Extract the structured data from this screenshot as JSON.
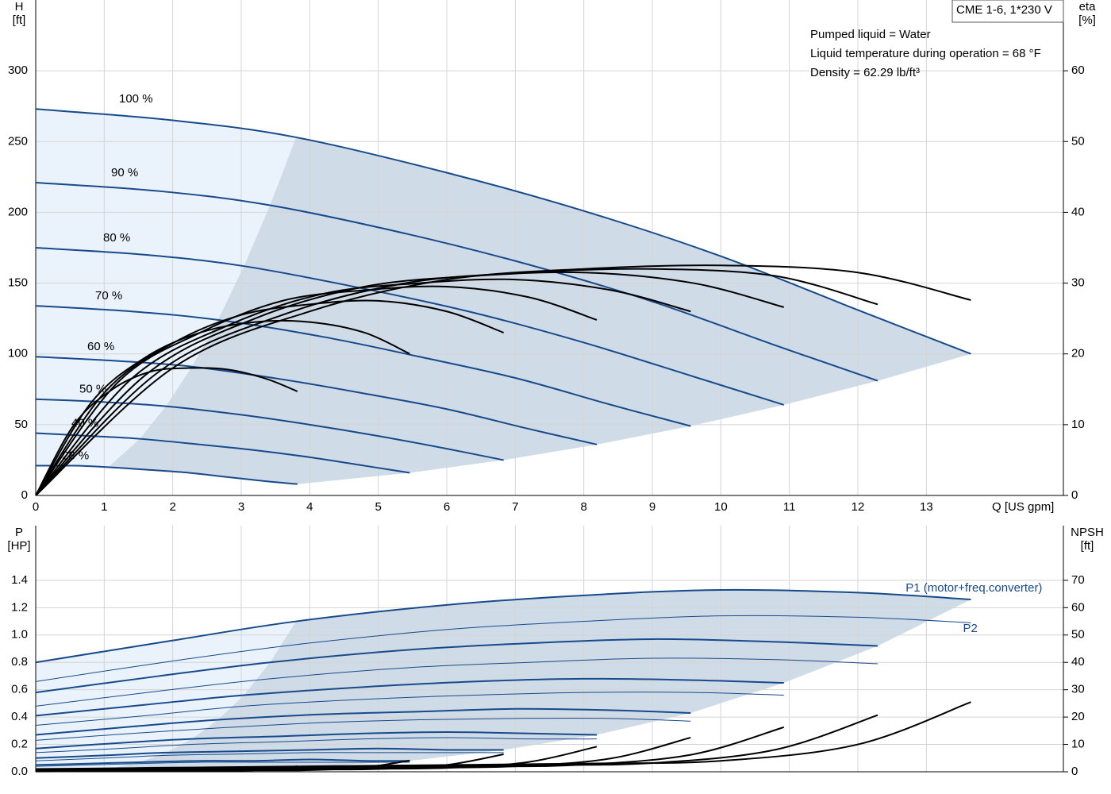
{
  "chart_data": [
    {
      "type": "line",
      "ylabel": [
        "H",
        "[ft]"
      ],
      "y2label": [
        "eta",
        "[%]"
      ],
      "xlabel": "Q [US gpm]",
      "annotations": [
        "CME 1-6, 1*230 V",
        "Pumped liquid = Water",
        "Liquid temperature during operation = 68 °F",
        "Density = 62.29 lb/ft³"
      ],
      "xlim": [
        0,
        15
      ],
      "xticks": [
        0,
        1,
        2,
        3,
        4,
        5,
        6,
        7,
        8,
        9,
        10,
        11,
        12,
        13
      ],
      "ylim": [
        0,
        350
      ],
      "yticks": [
        0,
        50,
        100,
        150,
        200,
        250,
        300
      ],
      "y2lim": [
        0,
        70
      ],
      "y2ticks": [
        0,
        10,
        20,
        30,
        40,
        50,
        60
      ],
      "grid": true,
      "series": [
        {
          "name": "100 %",
          "color": "#174a8b",
          "width": 2,
          "x": [
            0,
            2,
            3.8,
            6,
            8,
            10,
            12,
            13.65
          ],
          "values": [
            273,
            265,
            253,
            228,
            201,
            169,
            131,
            100
          ]
        },
        {
          "name": "90 %",
          "color": "#174a8b",
          "width": 2,
          "x": [
            0,
            1.8,
            3.42,
            5.4,
            7.2,
            9,
            10.8,
            12.29
          ],
          "values": [
            221,
            215,
            205,
            185,
            163,
            137,
            106,
            81
          ]
        },
        {
          "name": "80 %",
          "color": "#174a8b",
          "width": 2,
          "x": [
            0,
            1.6,
            3.04,
            4.8,
            6.4,
            8,
            9.6,
            10.92
          ],
          "values": [
            175,
            170,
            162,
            146,
            129,
            108,
            84,
            64
          ]
        },
        {
          "name": "70 %",
          "color": "#174a8b",
          "width": 2,
          "x": [
            0,
            1.4,
            2.66,
            4.2,
            5.6,
            7,
            8.4,
            9.56
          ],
          "values": [
            134,
            130,
            124,
            112,
            98,
            83,
            64,
            49
          ]
        },
        {
          "name": "60 %",
          "color": "#174a8b",
          "width": 2,
          "x": [
            0,
            1.2,
            2.28,
            3.6,
            4.8,
            6,
            7.2,
            8.19
          ],
          "values": [
            98,
            95,
            91,
            82,
            72,
            61,
            47,
            36
          ]
        },
        {
          "name": "50 %",
          "color": "#174a8b",
          "width": 2,
          "x": [
            0,
            1,
            1.9,
            3,
            4,
            5,
            6,
            6.83
          ],
          "values": [
            68,
            66,
            63,
            57,
            50,
            42,
            33,
            25
          ]
        },
        {
          "name": "40 %",
          "color": "#174a8b",
          "width": 2,
          "x": [
            0,
            0.8,
            1.52,
            2.4,
            3.2,
            4,
            4.8,
            5.46
          ],
          "values": [
            44,
            42,
            40,
            36,
            32,
            27,
            21,
            16
          ]
        },
        {
          "name": "28 %",
          "color": "#174a8b",
          "width": 2,
          "x": [
            0,
            0.56,
            1.06,
            1.68,
            2.24,
            2.8,
            3.36,
            3.82
          ],
          "values": [
            21,
            21,
            20,
            18,
            16,
            13,
            10,
            8
          ]
        },
        {
          "color": "#000000",
          "width": 2,
          "axis": "y2",
          "x": [
            0,
            2,
            4,
            6,
            8,
            10,
            12,
            13.65
          ],
          "values": [
            0,
            18,
            26,
            30.5,
            32,
            32.5,
            31.5,
            27.6
          ]
        },
        {
          "color": "#000000",
          "width": 2,
          "axis": "y2",
          "x": [
            0,
            1.8,
            3.6,
            5.4,
            7.2,
            9,
            10.8,
            12.29
          ],
          "values": [
            0,
            17.5,
            25.5,
            30,
            31.5,
            32,
            31,
            27
          ]
        },
        {
          "color": "#000000",
          "width": 2,
          "axis": "y2",
          "x": [
            0,
            1.6,
            3.2,
            4.8,
            6.4,
            8,
            9.6,
            10.92
          ],
          "values": [
            0,
            17,
            25,
            29.5,
            31,
            31.5,
            30,
            26.6
          ]
        },
        {
          "color": "#000000",
          "width": 2,
          "axis": "y2",
          "x": [
            0,
            1.4,
            2.8,
            4.2,
            5.6,
            7,
            8.4,
            9.56
          ],
          "values": [
            0,
            16.5,
            24,
            28.5,
            30,
            30.5,
            29,
            26
          ]
        },
        {
          "color": "#000000",
          "width": 2,
          "axis": "y2",
          "x": [
            0,
            1.2,
            2.4,
            3.6,
            4.8,
            6,
            7.2,
            8.19
          ],
          "values": [
            0,
            16,
            23,
            27.5,
            29,
            29.5,
            28,
            24.8
          ]
        },
        {
          "color": "#000000",
          "width": 2,
          "axis": "y2",
          "x": [
            0,
            1,
            2,
            3,
            4,
            5,
            6,
            6.83
          ],
          "values": [
            0,
            14.5,
            21.5,
            25.5,
            27,
            27.5,
            26,
            23
          ]
        },
        {
          "color": "#000000",
          "width": 2,
          "axis": "y2",
          "x": [
            0,
            0.8,
            1.6,
            2.4,
            3.2,
            4,
            4.8,
            5.46
          ],
          "values": [
            0,
            13,
            19.5,
            23,
            24.5,
            24.5,
            23,
            20
          ]
        },
        {
          "color": "#000000",
          "width": 2,
          "axis": "y2",
          "x": [
            0,
            0.56,
            1.12,
            1.68,
            2.24,
            2.8,
            3.36,
            3.82
          ],
          "values": [
            0,
            10,
            15,
            17.5,
            18,
            17.8,
            16.5,
            14.7
          ]
        }
      ]
    },
    {
      "type": "line",
      "ylabel": [
        "P",
        "[HP]"
      ],
      "y2label": [
        "NPSH",
        "[ft]"
      ],
      "xlim": [
        0,
        15
      ],
      "xticks": [
        0,
        1,
        2,
        3,
        4,
        5,
        6,
        7,
        8,
        9,
        10,
        11,
        12,
        13
      ],
      "ylim": [
        0,
        1.8
      ],
      "yticks": [
        {
          "value": 0,
          "label": "0.0"
        },
        0.2,
        0.4,
        0.6,
        0.8,
        {
          "value": 1,
          "label": "1.0"
        },
        1.2,
        1.4
      ],
      "y2lim": [
        0,
        90
      ],
      "y2ticks": [
        0,
        10,
        20,
        30,
        40,
        50,
        60,
        70
      ],
      "grid": true,
      "series": [
        {
          "name": "P1 (motor+freq.converter)",
          "color": "#174a8b",
          "width": 2,
          "x": [
            0,
            2,
            3.8,
            6,
            8,
            10,
            12,
            13.65
          ],
          "values": [
            0.8,
            0.96,
            1.1,
            1.22,
            1.29,
            1.33,
            1.31,
            1.26
          ]
        },
        {
          "color": "#174a8b",
          "width": 2,
          "x": [
            0,
            1.8,
            3.42,
            5.4,
            7.2,
            9,
            10.8,
            12.29
          ],
          "values": [
            0.58,
            0.7,
            0.8,
            0.89,
            0.94,
            0.97,
            0.95,
            0.92
          ]
        },
        {
          "color": "#174a8b",
          "width": 2,
          "x": [
            0,
            1.6,
            3.04,
            4.8,
            6.4,
            8,
            9.6,
            10.92
          ],
          "values": [
            0.41,
            0.49,
            0.56,
            0.62,
            0.66,
            0.68,
            0.67,
            0.65
          ]
        },
        {
          "color": "#174a8b",
          "width": 2,
          "x": [
            0,
            1.4,
            2.66,
            4.2,
            5.6,
            7,
            8.4,
            9.56
          ],
          "values": [
            0.27,
            0.33,
            0.38,
            0.42,
            0.44,
            0.46,
            0.45,
            0.43
          ]
        },
        {
          "color": "#174a8b",
          "width": 2,
          "x": [
            0,
            1.2,
            2.28,
            3.6,
            4.8,
            6,
            7.2,
            8.19
          ],
          "values": [
            0.17,
            0.21,
            0.24,
            0.26,
            0.28,
            0.29,
            0.28,
            0.27
          ]
        },
        {
          "color": "#174a8b",
          "width": 2,
          "x": [
            0,
            1,
            1.9,
            3,
            4,
            5,
            6,
            6.83
          ],
          "values": [
            0.1,
            0.12,
            0.14,
            0.15,
            0.16,
            0.17,
            0.16,
            0.16
          ]
        },
        {
          "color": "#174a8b",
          "width": 2,
          "x": [
            0,
            0.8,
            1.52,
            2.4,
            3.2,
            4,
            4.8,
            5.46
          ],
          "values": [
            0.05,
            0.06,
            0.07,
            0.08,
            0.08,
            0.09,
            0.08,
            0.08
          ]
        },
        {
          "color": "#174a8b",
          "width": 2,
          "x": [
            0,
            0.56,
            1.06,
            1.68,
            2.24,
            2.8,
            3.36,
            3.82
          ],
          "values": [
            0.02,
            0.02,
            0.02,
            0.03,
            0.03,
            0.03,
            0.03,
            0.03
          ]
        },
        {
          "name": "P2",
          "color": "#174a8b",
          "width": 1,
          "x": [
            0,
            2,
            3.8,
            6,
            8,
            10,
            12,
            13.65
          ],
          "values": [
            0.66,
            0.81,
            0.93,
            1.04,
            1.1,
            1.14,
            1.13,
            1.09
          ]
        },
        {
          "color": "#174a8b",
          "width": 1,
          "x": [
            0,
            1.8,
            3.42,
            5.4,
            7.2,
            9,
            10.8,
            12.29
          ],
          "values": [
            0.48,
            0.59,
            0.68,
            0.76,
            0.8,
            0.83,
            0.82,
            0.79
          ]
        },
        {
          "color": "#174a8b",
          "width": 1,
          "x": [
            0,
            1.6,
            3.04,
            4.8,
            6.4,
            8,
            9.6,
            10.92
          ],
          "values": [
            0.34,
            0.41,
            0.48,
            0.53,
            0.56,
            0.58,
            0.58,
            0.56
          ]
        },
        {
          "color": "#174a8b",
          "width": 1,
          "x": [
            0,
            1.4,
            2.66,
            4.2,
            5.6,
            7,
            8.4,
            9.56
          ],
          "values": [
            0.23,
            0.28,
            0.32,
            0.36,
            0.38,
            0.39,
            0.39,
            0.37
          ]
        },
        {
          "color": "#174a8b",
          "width": 1,
          "x": [
            0,
            1.2,
            2.28,
            3.6,
            4.8,
            6,
            7.2,
            8.19
          ],
          "values": [
            0.14,
            0.17,
            0.2,
            0.22,
            0.24,
            0.25,
            0.24,
            0.24
          ]
        },
        {
          "color": "#174a8b",
          "width": 1,
          "x": [
            0,
            1,
            1.9,
            3,
            4,
            5,
            6,
            6.83
          ],
          "values": [
            0.08,
            0.1,
            0.12,
            0.13,
            0.14,
            0.14,
            0.14,
            0.14
          ]
        },
        {
          "color": "#174a8b",
          "width": 1,
          "x": [
            0,
            0.8,
            1.52,
            2.4,
            3.2,
            4,
            4.8,
            5.46
          ],
          "values": [
            0.04,
            0.05,
            0.06,
            0.07,
            0.07,
            0.07,
            0.07,
            0.07
          ]
        },
        {
          "color": "#174a8b",
          "width": 1,
          "x": [
            0,
            0.56,
            1.06,
            1.68,
            2.24,
            2.8,
            3.36,
            3.82
          ],
          "values": [
            0.01,
            0.02,
            0.02,
            0.02,
            0.02,
            0.03,
            0.02,
            0.02
          ]
        },
        {
          "color": "#000000",
          "width": 2,
          "axis": "y2",
          "x": [
            0,
            4,
            8,
            10,
            12,
            13.65
          ],
          "values": [
            1,
            2,
            3,
            4,
            10,
            25.5
          ]
        },
        {
          "color": "#000000",
          "width": 2,
          "axis": "y2",
          "x": [
            0,
            3.6,
            7.2,
            9,
            10.8,
            12.29
          ],
          "values": [
            0.8,
            1.6,
            2.4,
            3.2,
            8.1,
            20.7
          ]
        },
        {
          "color": "#000000",
          "width": 2,
          "axis": "y2",
          "x": [
            0,
            3.2,
            6.4,
            8,
            9.6,
            10.92
          ],
          "values": [
            0.6,
            1.3,
            1.9,
            2.6,
            6.4,
            16.3
          ]
        },
        {
          "color": "#000000",
          "width": 2,
          "axis": "y2",
          "x": [
            0,
            2.8,
            5.6,
            7,
            8.4,
            9.56
          ],
          "values": [
            0.5,
            1.0,
            1.5,
            2.0,
            4.9,
            12.5
          ]
        },
        {
          "color": "#000000",
          "width": 2,
          "axis": "y2",
          "x": [
            0,
            2.4,
            4.8,
            6,
            7.2,
            8.19
          ],
          "values": [
            0.4,
            0.7,
            1.1,
            1.4,
            3.6,
            9.2
          ]
        },
        {
          "color": "#000000",
          "width": 2,
          "axis": "y2",
          "x": [
            0,
            2,
            4,
            5,
            6,
            6.83
          ],
          "values": [
            0.3,
            0.5,
            0.8,
            1.0,
            2.5,
            6.4
          ]
        },
        {
          "color": "#000000",
          "width": 2,
          "axis": "y2",
          "x": [
            0,
            1.6,
            3.2,
            4,
            4.8,
            5.46
          ],
          "values": [
            0.2,
            0.3,
            0.5,
            0.6,
            1.6,
            4.1
          ]
        },
        {
          "color": "#000000",
          "width": 2,
          "axis": "y2",
          "x": [
            0,
            1.12,
            2.24,
            2.8,
            3.36,
            3.82
          ],
          "values": [
            0.1,
            0.2,
            0.2,
            0.3,
            0.8,
            2.0
          ]
        }
      ]
    }
  ]
}
